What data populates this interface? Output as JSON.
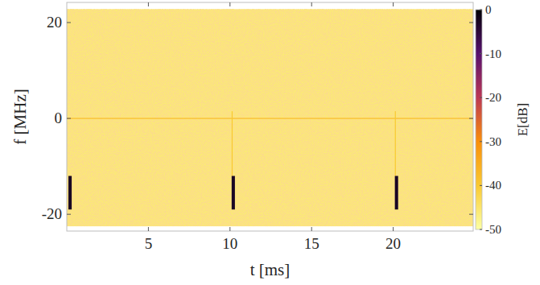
{
  "chart_data": {
    "type": "heatmap",
    "xlabel": "t [ms]",
    "ylabel": "f [MHz]",
    "xlim": [
      0,
      24.9
    ],
    "ylim": [
      -23.5,
      24.2
    ],
    "xticks": [
      5,
      10,
      15,
      20
    ],
    "yticks": [
      -20,
      0,
      20
    ],
    "grid": false,
    "regions": [
      {
        "t": [
          0,
          24.9
        ],
        "f": [
          -22.5,
          22.8
        ],
        "value": -46
      },
      {
        "t": [
          0,
          24.9
        ],
        "f": [
          -0.1,
          0.1
        ],
        "value": -38
      },
      {
        "t": [
          10.1,
          10.16
        ],
        "f": [
          -12,
          1.5
        ],
        "value": -40
      },
      {
        "t": [
          20.1,
          20.16
        ],
        "f": [
          -12,
          1.5
        ],
        "value": -40
      },
      {
        "t": [
          0.1,
          0.3
        ],
        "f": [
          -19,
          -12
        ],
        "value": -3
      },
      {
        "t": [
          10.1,
          10.3
        ],
        "f": [
          -19,
          -12
        ],
        "value": -3
      },
      {
        "t": [
          20.1,
          20.3
        ],
        "f": [
          -19,
          -12
        ],
        "value": -3
      }
    ],
    "colorbar": {
      "label": "E[dB]",
      "lim": [
        -50,
        0
      ],
      "ticks": [
        0,
        -10,
        -20,
        -30,
        -40,
        -50
      ]
    }
  }
}
